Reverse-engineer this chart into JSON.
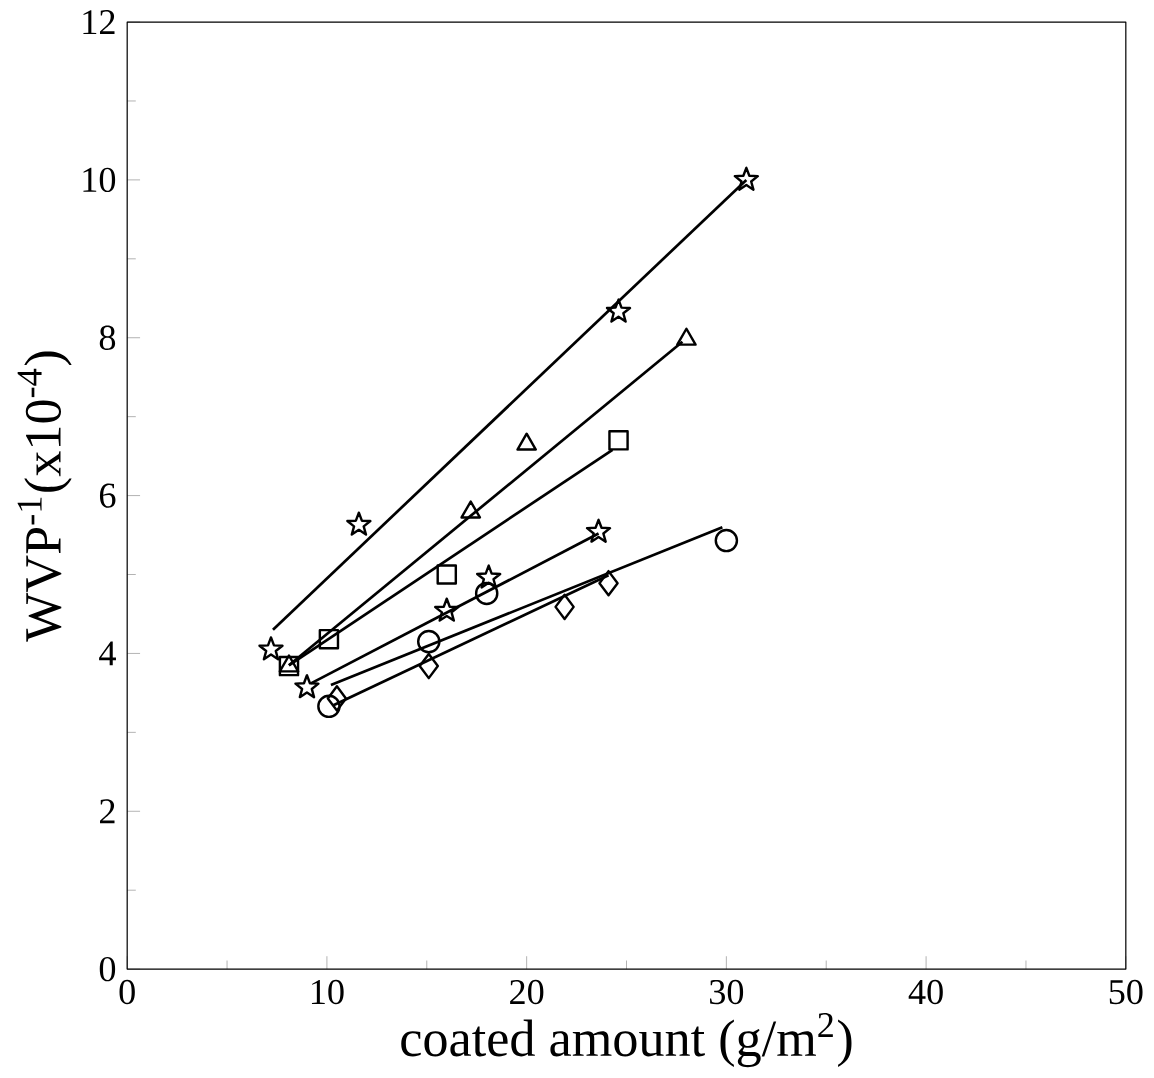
{
  "chart_data": {
    "type": "scatter",
    "xlabel": "coated amount (g/m$^{2}$)",
    "ylabel": "WVP$^{-1}$(x10$^{-4}$)",
    "xlim": [
      0,
      50
    ],
    "ylim": [
      0,
      12
    ],
    "xticks": [
      0,
      10,
      20,
      30,
      40,
      50
    ],
    "yticks": [
      0,
      2,
      4,
      6,
      8,
      10,
      12
    ],
    "series": [
      {
        "type": "scatter",
        "marker": "star",
        "color": "#000000",
        "x": [
          7.2,
          11.6,
          24.6,
          31.0
        ],
        "values": [
          4.05,
          5.63,
          8.33,
          10.0
        ]
      },
      {
        "type": "scatter",
        "marker": "triangle",
        "color": "#000000",
        "x": [
          8.1,
          17.2,
          20.0,
          28.0
        ],
        "values": [
          3.84,
          5.79,
          6.65,
          7.98
        ]
      },
      {
        "type": "scatter",
        "marker": "square",
        "color": "#000000",
        "x": [
          8.1,
          10.1,
          16.0,
          24.6
        ],
        "values": [
          3.84,
          4.18,
          5.0,
          6.7
        ]
      },
      {
        "type": "scatter",
        "marker": "star",
        "color": "#000000",
        "x": [
          9.0,
          16.0,
          18.1,
          23.6
        ],
        "values": [
          3.57,
          4.54,
          4.96,
          5.54
        ]
      },
      {
        "type": "scatter",
        "marker": "circle",
        "color": "#000000",
        "x": [
          10.1,
          15.1,
          18.0,
          30.0
        ],
        "values": [
          3.33,
          4.15,
          4.76,
          5.43
        ]
      },
      {
        "type": "scatter",
        "marker": "diamond",
        "color": "#000000",
        "x": [
          10.5,
          15.1,
          21.9,
          24.1
        ],
        "values": [
          3.43,
          3.84,
          4.59,
          4.89
        ]
      },
      {
        "type": "line",
        "marker": "none",
        "line_style": "solid",
        "color": "#000000",
        "x": [
          7.3,
          31.0
        ],
        "values": [
          4.3,
          10.0
        ]
      },
      {
        "type": "line",
        "marker": "none",
        "line_style": "solid",
        "color": "#000000",
        "x": [
          8.1,
          27.8
        ],
        "values": [
          3.85,
          7.95
        ]
      },
      {
        "type": "line",
        "marker": "none",
        "line_style": "solid",
        "color": "#000000",
        "x": [
          8.1,
          24.3
        ],
        "values": [
          3.85,
          6.58
        ]
      },
      {
        "type": "line",
        "marker": "none",
        "line_style": "solid",
        "color": "#000000",
        "x": [
          9.2,
          23.6
        ],
        "values": [
          3.62,
          5.52
        ]
      },
      {
        "type": "line",
        "marker": "none",
        "line_style": "solid",
        "color": "#000000",
        "x": [
          10.2,
          29.8
        ],
        "values": [
          3.6,
          5.6
        ]
      },
      {
        "type": "line",
        "marker": "none",
        "line_style": "solid",
        "color": "#000000",
        "x": [
          10.3,
          24.1
        ],
        "values": [
          3.34,
          4.99
        ]
      }
    ]
  }
}
